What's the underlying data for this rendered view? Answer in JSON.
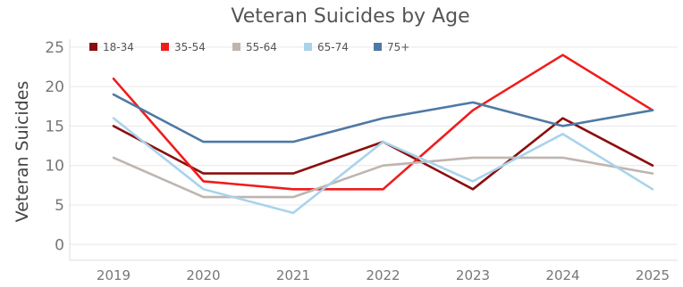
{
  "chart_data": {
    "type": "line",
    "title": "Veteran Suicides by Age",
    "xlabel": "",
    "ylabel": "Veteran Suicides",
    "x": [
      "2019",
      "2020",
      "2021",
      "2022",
      "2023",
      "2024",
      "2025"
    ],
    "ylim": [
      -2,
      26
    ],
    "yticks": [
      0,
      5,
      10,
      15,
      20,
      25
    ],
    "grid": true,
    "legend": "top-left",
    "series": [
      {
        "name": "18-34",
        "color": "#8b0e0e",
        "values": [
          15,
          9,
          9,
          13,
          7,
          16,
          10
        ]
      },
      {
        "name": "35-54",
        "color": "#f01c1c",
        "values": [
          21,
          8,
          7,
          7,
          17,
          24,
          17
        ]
      },
      {
        "name": "55-64",
        "color": "#bfb5b0",
        "values": [
          11,
          6,
          6,
          10,
          11,
          11,
          9
        ]
      },
      {
        "name": "65-74",
        "color": "#a9d3ec",
        "values": [
          16,
          7,
          4,
          13,
          8,
          14,
          7
        ]
      },
      {
        "name": "75+",
        "color": "#4e79a4",
        "values": [
          19,
          13,
          13,
          16,
          18,
          15,
          17
        ]
      }
    ]
  }
}
